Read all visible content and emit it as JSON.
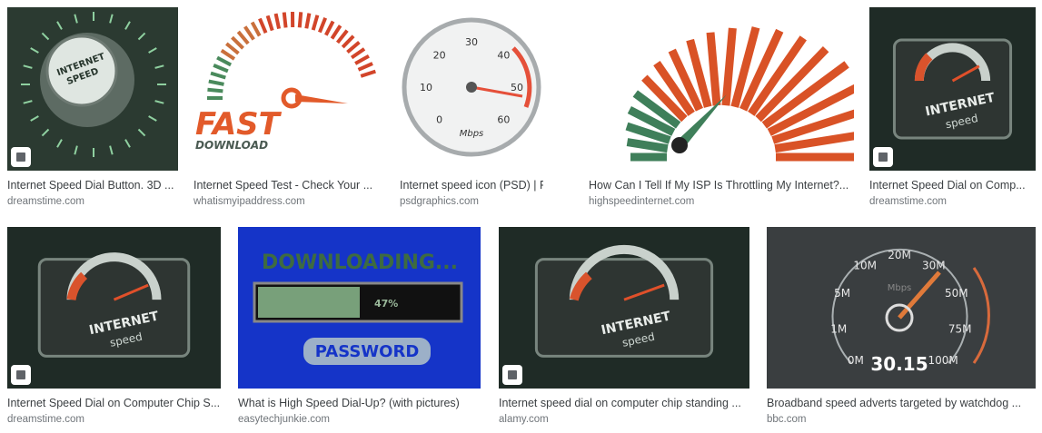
{
  "results": [
    {
      "title": "Internet Speed Dial Button. 3D ...",
      "source": "dreamstime.com",
      "image_text": [
        "INTERNET",
        "SPEED"
      ]
    },
    {
      "title": "Internet Speed Test - Check Your ...",
      "source": "whatismyipaddress.com",
      "image_text": [
        "FAST",
        "DOWNLOAD"
      ]
    },
    {
      "title": "Internet speed icon (PSD) | PS...",
      "source": "psdgraphics.com",
      "image_text": [
        "0",
        "10",
        "20",
        "30",
        "40",
        "50",
        "60",
        "Mbps"
      ]
    },
    {
      "title": "How Can I Tell If My ISP Is Throttling My Internet?...",
      "source": "highspeedinternet.com",
      "image_text": []
    },
    {
      "title": "Internet Speed Dial on Comp...",
      "source": "dreamstime.com",
      "image_text": [
        "INTERNET",
        "speed"
      ]
    },
    {
      "title": "Internet Speed Dial on Computer Chip S...",
      "source": "dreamstime.com",
      "image_text": [
        "INTERNET",
        "speed"
      ]
    },
    {
      "title": "What is High Speed Dial-Up? (with pictures)",
      "source": "easytechjunkie.com",
      "image_text": [
        "DOWNLOADING...",
        "47%",
        "PASSWORD"
      ]
    },
    {
      "title": "Internet speed dial on computer chip standing ...",
      "source": "alamy.com",
      "image_text": [
        "INTERNET",
        "speed"
      ]
    },
    {
      "title": "Broadband speed adverts targeted by watchdog ...",
      "source": "bbc.com",
      "image_text": [
        "0M",
        "1M",
        "5M",
        "10M",
        "20M",
        "30M",
        "50M",
        "75M",
        "100M",
        "Mbps",
        "30.15"
      ]
    }
  ]
}
